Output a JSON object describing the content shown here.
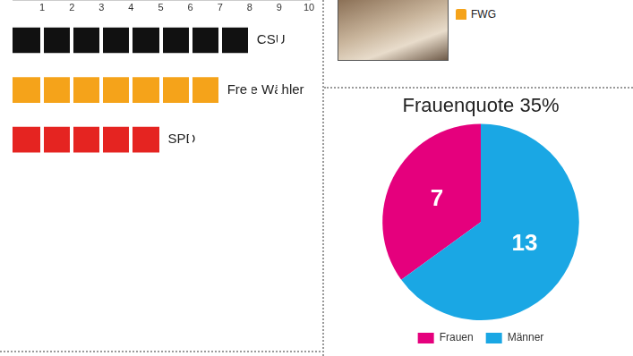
{
  "chart_data": [
    {
      "type": "bar",
      "orientation": "horizontal",
      "categories": [
        "CSU",
        "Freie Wähler",
        "SPD"
      ],
      "values": [
        8,
        7,
        5
      ],
      "colors": [
        "#111111",
        "#f5a31a",
        "#e52421"
      ],
      "xlim": [
        0,
        10
      ],
      "xticks": [
        1,
        2,
        3,
        4,
        5,
        6,
        7,
        8,
        9,
        10
      ],
      "tick_labels": "x",
      "grid": true
    },
    {
      "type": "pie",
      "title": "Frauenquote 35%",
      "categories": [
        "Frauen",
        "Männer"
      ],
      "values": [
        7,
        13
      ],
      "colors": [
        "#e5007d",
        "#1aa7e4"
      ],
      "data_labels": true,
      "legend": "bottom"
    }
  ],
  "portrait": {
    "caption": "FWG",
    "color": "#f5a31a"
  }
}
